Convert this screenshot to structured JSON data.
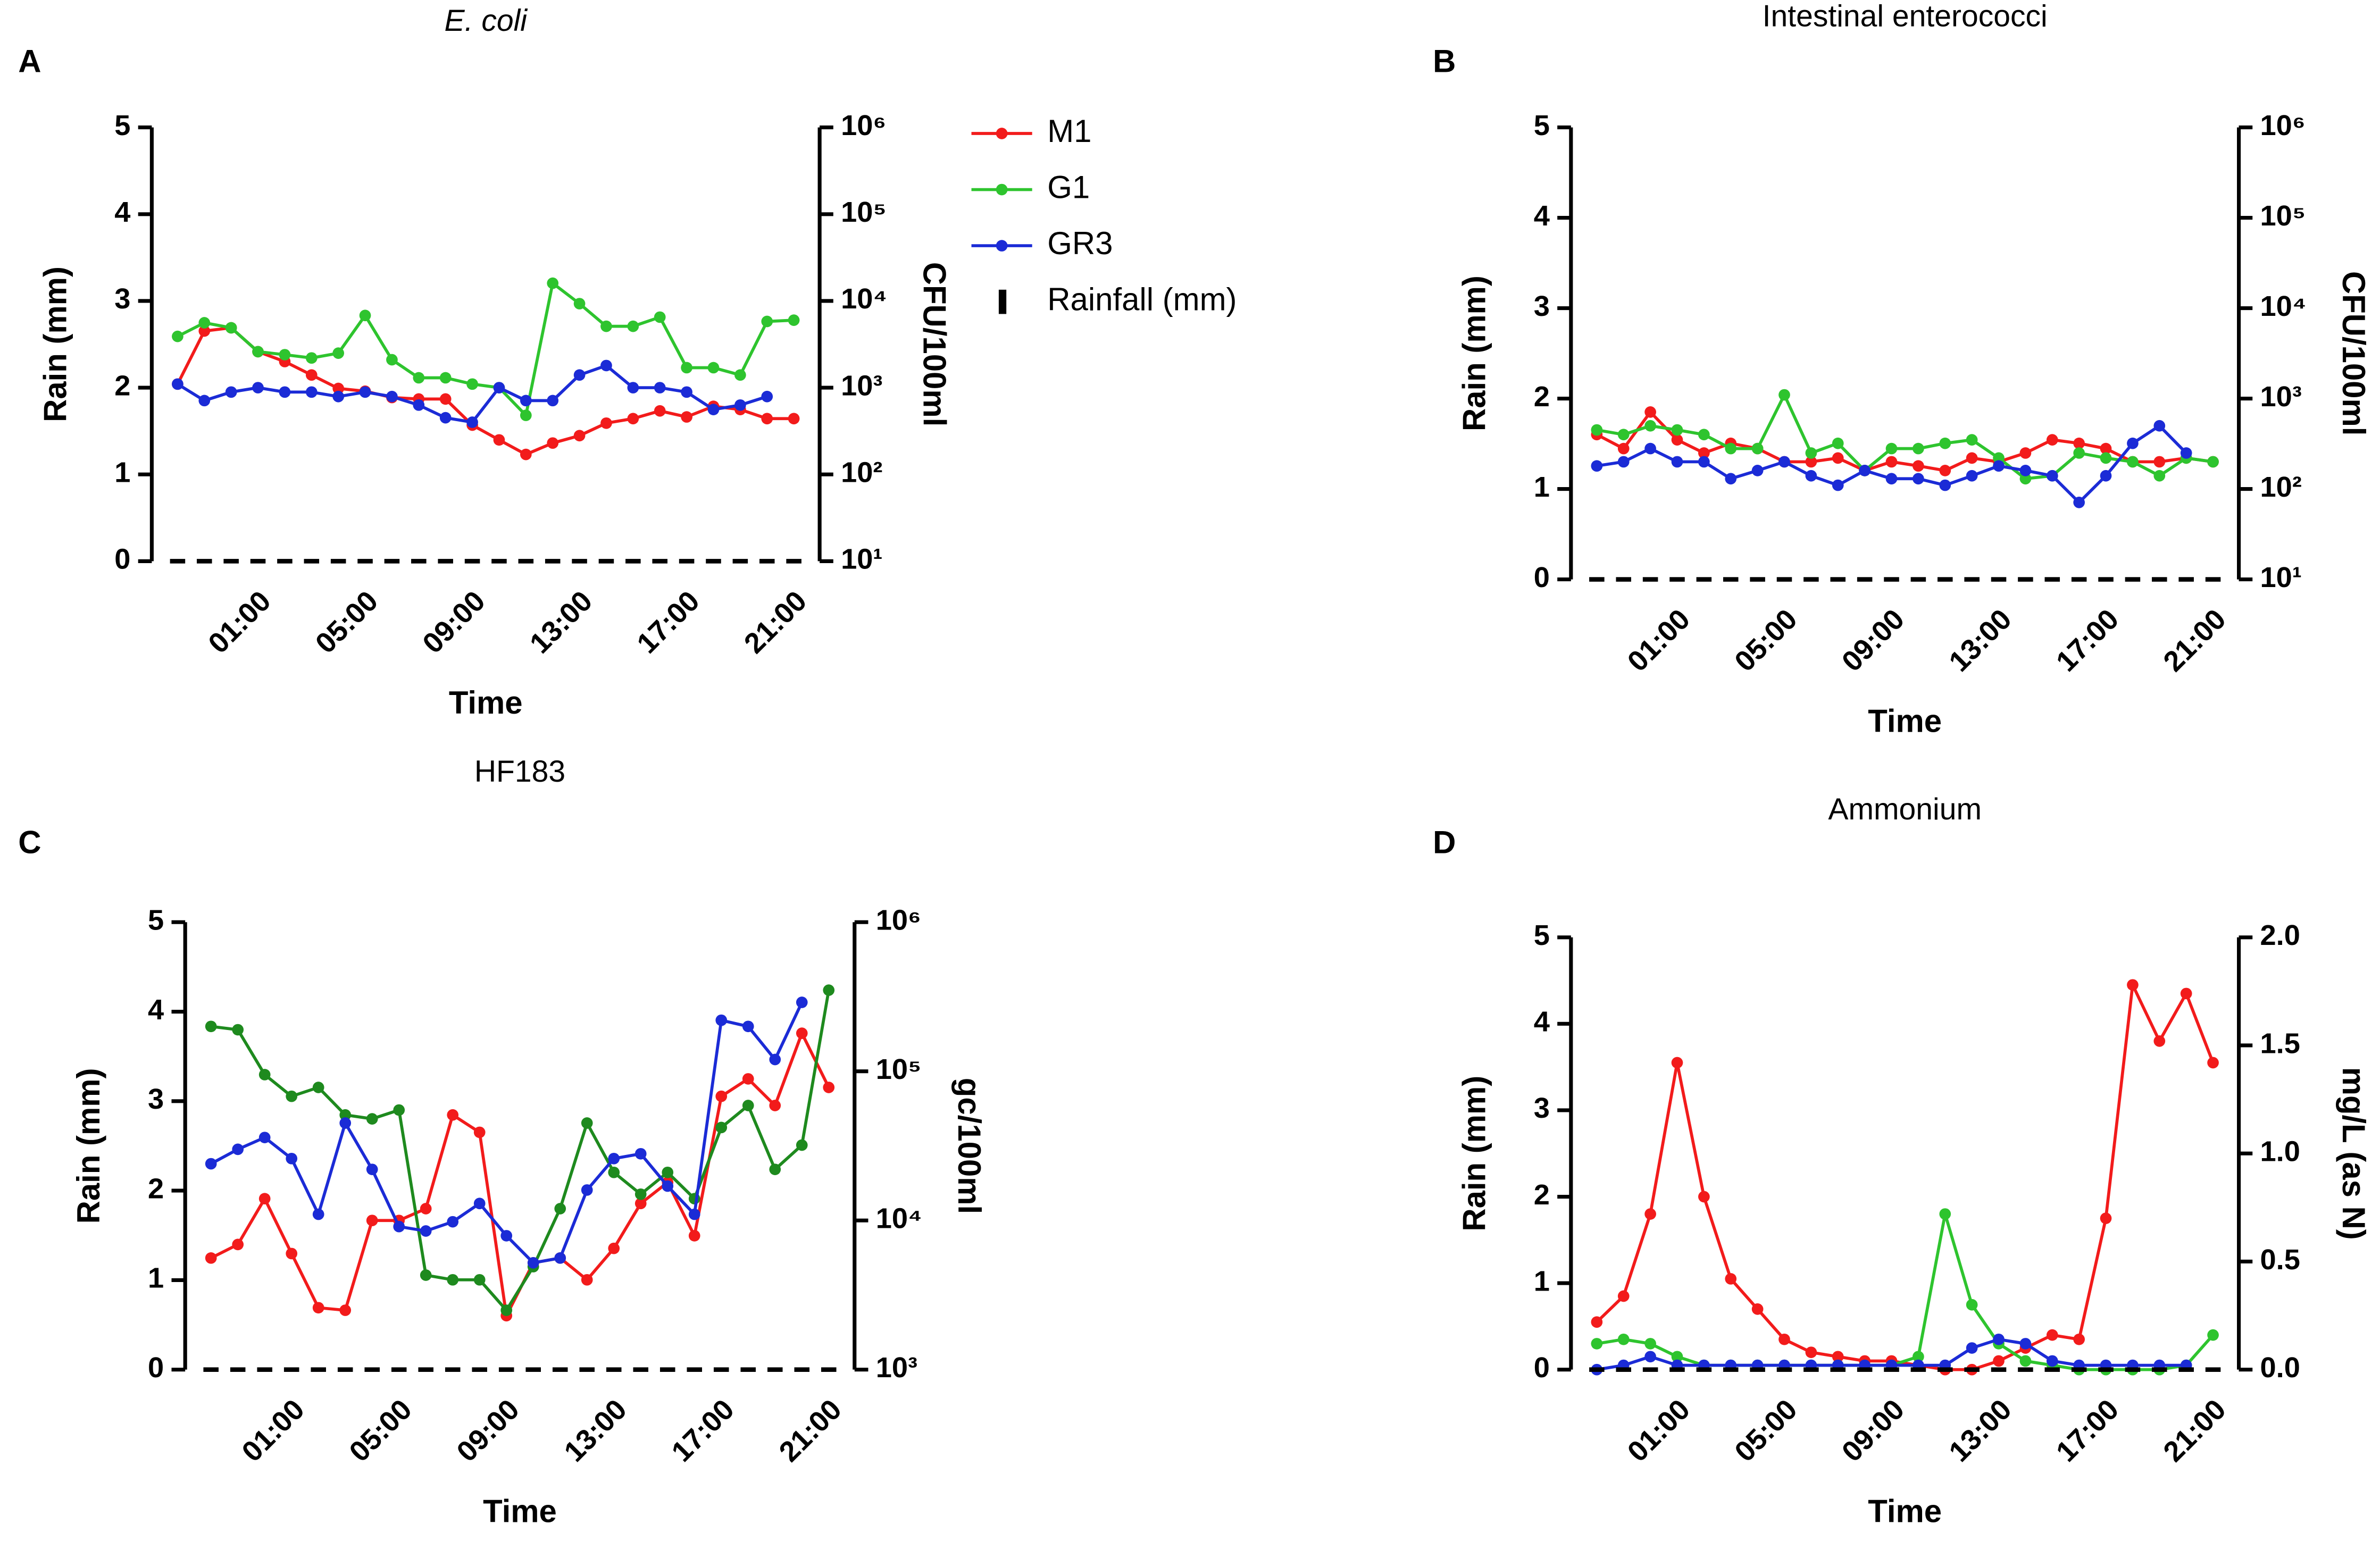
{
  "chart_data": [
    {
      "type": "line",
      "panel": "A",
      "title": "E. coli",
      "xlabel": "Time",
      "ylabel": "Rain (mm)",
      "y2label": "CFU/100ml",
      "legend": "right",
      "categories": [
        null,
        null,
        null,
        "01:00",
        null,
        null,
        null,
        "05:00",
        null,
        null,
        null,
        "09:00",
        null,
        null,
        null,
        "13:00",
        null,
        null,
        null,
        "17:00",
        null,
        null,
        null,
        "21:00"
      ],
      "ylim": [
        0,
        5
      ],
      "yticks": [
        0,
        1,
        2,
        3,
        4,
        5
      ],
      "y2scale": "log",
      "y2lim": [
        10,
        1000000
      ],
      "y2ticks": [
        {
          "value": 10,
          "label": "10¹"
        },
        {
          "value": 100,
          "label": "10²"
        },
        {
          "value": 1000,
          "label": "10³"
        },
        {
          "value": 10000,
          "label": "10⁴"
        },
        {
          "value": 100000,
          "label": "10⁵"
        },
        {
          "value": 1000000,
          "label": "10⁶"
        }
      ],
      "series": [
        {
          "name": "M1",
          "color": "#f21b1b",
          "axis": "y2",
          "values": [
            1100,
            4500,
            4900,
            2600,
            2000,
            1400,
            980,
            910,
            770,
            740,
            740,
            370,
            250,
            170,
            230,
            280,
            390,
            440,
            540,
            460,
            610,
            560,
            440,
            440
          ]
        },
        {
          "name": "G1",
          "color": "#2ec42e",
          "axis": "y2",
          "values": [
            3900,
            5600,
            4900,
            2600,
            2400,
            2200,
            2500,
            6800,
            2100,
            1300,
            1300,
            1100,
            1000,
            480,
            16000,
            9300,
            5100,
            5100,
            6500,
            1700,
            1700,
            1400,
            5800,
            6000
          ]
        },
        {
          "name": "GR3",
          "color": "#1b2bd6",
          "axis": "y2",
          "values": [
            1100,
            710,
            890,
            1000,
            890,
            890,
            790,
            890,
            790,
            630,
            450,
            400,
            1000,
            710,
            710,
            1400,
            1800,
            1000,
            1000,
            890,
            560,
            630,
            790,
            null
          ]
        },
        {
          "name": "Rainfall (mm)",
          "color": "#000000",
          "type": "bar",
          "values": [
            0,
            0,
            0,
            0,
            0,
            0,
            0,
            0,
            0,
            0,
            0,
            0,
            0,
            0,
            0,
            0,
            0,
            0,
            0,
            0,
            0,
            0,
            0,
            0
          ]
        }
      ]
    },
    {
      "type": "line",
      "panel": "B",
      "title": "Intestinal enterococci",
      "xlabel": "Time",
      "ylabel": "Rain (mm)",
      "y2label": "CFU/100ml",
      "categories": [
        null,
        null,
        null,
        "01:00",
        null,
        null,
        null,
        "05:00",
        null,
        null,
        null,
        "09:00",
        null,
        null,
        null,
        "13:00",
        null,
        null,
        null,
        "17:00",
        null,
        null,
        null,
        "21:00"
      ],
      "ylim": [
        0,
        5
      ],
      "yticks": [
        0,
        1,
        2,
        3,
        4,
        5
      ],
      "y2scale": "log",
      "y2lim": [
        10,
        1000000
      ],
      "y2ticks": [
        {
          "value": 10,
          "label": "10¹"
        },
        {
          "value": 100,
          "label": "10²"
        },
        {
          "value": 1000,
          "label": "10³"
        },
        {
          "value": 10000,
          "label": "10⁴"
        },
        {
          "value": 100000,
          "label": "10⁵"
        },
        {
          "value": 1000000,
          "label": "10⁶"
        }
      ],
      "series": [
        {
          "color": "#f21b1b",
          "axis": "y2",
          "values": [
            400,
            280,
            710,
            350,
            250,
            320,
            280,
            200,
            200,
            220,
            160,
            200,
            180,
            160,
            220,
            200,
            250,
            350,
            320,
            280,
            200,
            200,
            220,
            200
          ]
        },
        {
          "color": "#2ec42e",
          "axis": "y2",
          "values": [
            450,
            400,
            500,
            450,
            400,
            280,
            280,
            1100,
            250,
            320,
            160,
            280,
            280,
            320,
            350,
            220,
            130,
            140,
            250,
            220,
            200,
            140,
            220,
            200
          ]
        },
        {
          "color": "#1b2bd6",
          "axis": "y2",
          "values": [
            180,
            200,
            280,
            200,
            200,
            130,
            160,
            200,
            140,
            110,
            160,
            130,
            130,
            110,
            140,
            180,
            160,
            140,
            71,
            140,
            320,
            500,
            250,
            null
          ]
        },
        {
          "color": "#000000",
          "type": "bar",
          "values": [
            0,
            0,
            0,
            0,
            0,
            0,
            0,
            0,
            0,
            0,
            0,
            0,
            0,
            0,
            0,
            0,
            0,
            0,
            0,
            0,
            0,
            0,
            0,
            0
          ]
        }
      ]
    },
    {
      "type": "line",
      "panel": "C",
      "title": "HF183",
      "xlabel": "Time",
      "ylabel": "Rain (mm)",
      "y2label": "gc/100ml",
      "categories": [
        null,
        null,
        null,
        "01:00",
        null,
        null,
        null,
        "05:00",
        null,
        null,
        null,
        "09:00",
        null,
        null,
        null,
        "13:00",
        null,
        null,
        null,
        "17:00",
        null,
        null,
        null,
        "21:00"
      ],
      "ylim": [
        0,
        5
      ],
      "yticks": [
        0,
        1,
        2,
        3,
        4,
        5
      ],
      "y2scale": "log",
      "y2lim": [
        1000,
        1000000
      ],
      "y2ticks": [
        {
          "value": 1000,
          "label": "10³"
        },
        {
          "value": 10000,
          "label": "10⁴"
        },
        {
          "value": 100000,
          "label": "10⁵"
        },
        {
          "value": 1000000,
          "label": "10⁶"
        }
      ],
      "series": [
        {
          "color": "#f21b1b",
          "axis": "y2",
          "values": [
            5600,
            6900,
            14000,
            6000,
            2600,
            2500,
            10000,
            10000,
            12000,
            51000,
            39000,
            2300,
            5200,
            5600,
            4000,
            6500,
            13000,
            18000,
            7900,
            68000,
            89000,
            59000,
            180000,
            78000
          ]
        },
        {
          "color": "#1e8a1e",
          "axis": "y2",
          "values": [
            200000,
            190000,
            95000,
            68000,
            78000,
            51000,
            48000,
            55000,
            4300,
            4000,
            4000,
            2500,
            4900,
            12000,
            45000,
            21000,
            15000,
            21000,
            14000,
            42000,
            59000,
            22000,
            32000,
            350000
          ]
        },
        {
          "color": "#1b2bd6",
          "axis": "y2",
          "values": [
            24000,
            30000,
            36000,
            26000,
            11000,
            45000,
            22000,
            9100,
            8500,
            9800,
            13000,
            7900,
            5200,
            5600,
            16000,
            26000,
            28000,
            17000,
            11000,
            220000,
            200000,
            120000,
            290000,
            null
          ]
        },
        {
          "color": "#000000",
          "type": "bar",
          "values": [
            0,
            0,
            0,
            0,
            0,
            0,
            0,
            0,
            0,
            0,
            0,
            0,
            0,
            0,
            0,
            0,
            0,
            0,
            0,
            0,
            0,
            0,
            0,
            0
          ]
        }
      ]
    },
    {
      "type": "line",
      "panel": "D",
      "title": "Ammonium",
      "xlabel": "Time",
      "ylabel": "Rain (mm)",
      "y2label": "mg/L (as N)",
      "categories": [
        null,
        null,
        null,
        "01:00",
        null,
        null,
        null,
        "05:00",
        null,
        null,
        null,
        "09:00",
        null,
        null,
        null,
        "13:00",
        null,
        null,
        null,
        "17:00",
        null,
        null,
        null,
        "21:00"
      ],
      "ylim": [
        0,
        5
      ],
      "yticks": [
        0,
        1,
        2,
        3,
        4,
        5
      ],
      "y2scale": "linear",
      "y2lim": [
        0,
        2
      ],
      "y2ticks": [
        {
          "value": 0,
          "label": "0.0"
        },
        0.5,
        {
          "value": 1,
          "label": "1.0"
        },
        1.5,
        {
          "value": 2,
          "label": "2.0"
        }
      ],
      "series": [
        {
          "color": "#f21b1b",
          "axis": "y2",
          "values": [
            0.22,
            0.34,
            0.72,
            1.42,
            0.8,
            0.42,
            0.28,
            0.14,
            0.08,
            0.06,
            0.04,
            0.04,
            0.02,
            0,
            0,
            0.04,
            0.1,
            0.16,
            0.14,
            0.7,
            1.78,
            1.52,
            1.74,
            1.42
          ]
        },
        {
          "color": "#2ec42e",
          "axis": "y2",
          "values": [
            0.12,
            0.14,
            0.12,
            0.06,
            0.02,
            0.02,
            0.02,
            0.02,
            0.02,
            0.02,
            0.02,
            0.02,
            0.06,
            0.72,
            0.3,
            0.12,
            0.04,
            0.02,
            0,
            0,
            0,
            0,
            0.02,
            0.16
          ]
        },
        {
          "color": "#1b2bd6",
          "axis": "y2",
          "values": [
            0,
            0.02,
            0.06,
            0.02,
            0.02,
            0.02,
            0.02,
            0.02,
            0.02,
            0.02,
            0.02,
            0.02,
            0.02,
            0.02,
            0.1,
            0.14,
            0.12,
            0.04,
            0.02,
            0.02,
            0.02,
            0.02,
            0.02,
            null
          ]
        },
        {
          "color": "#000000",
          "type": "bar",
          "values": [
            0,
            0,
            0,
            0,
            0,
            0,
            0,
            0,
            0,
            0,
            0,
            0,
            0,
            0,
            0,
            0,
            0,
            0,
            0,
            0,
            0,
            0,
            0,
            0
          ]
        }
      ]
    }
  ]
}
